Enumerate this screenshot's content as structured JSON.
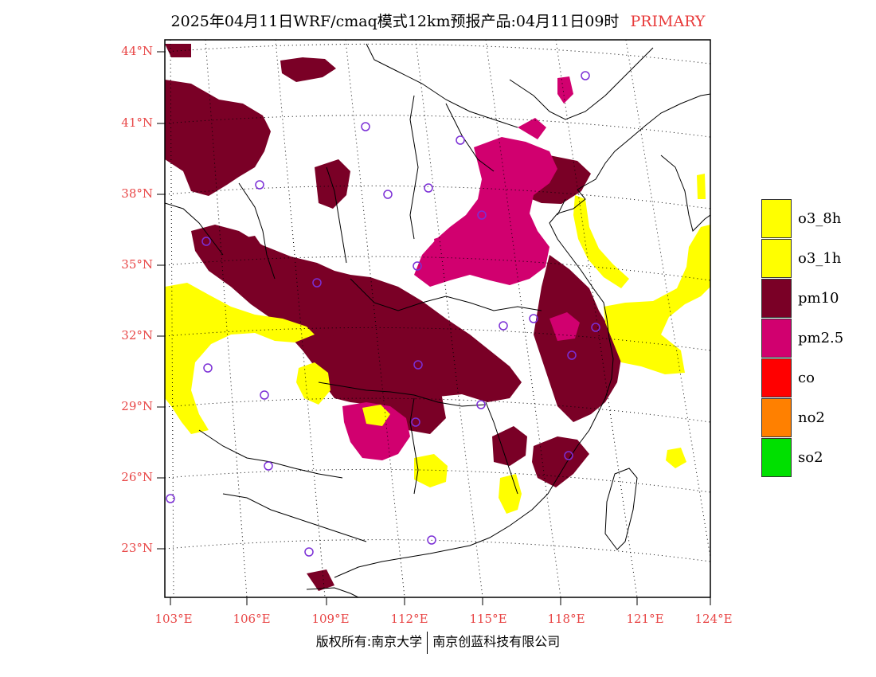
{
  "header": {
    "title": "2025年04月11日WRF/cmaq模式12km预报产品:04月11日09时",
    "tag": "PRIMARY"
  },
  "axes": {
    "lat_labels": [
      "44°N",
      "41°N",
      "38°N",
      "35°N",
      "32°N",
      "29°N",
      "26°N",
      "23°N"
    ],
    "lon_labels": [
      "103°E",
      "106°E",
      "109°E",
      "112°E",
      "115°E",
      "118°E",
      "121°E",
      "124°E"
    ]
  },
  "legend": {
    "items": [
      {
        "label": "o3_8h",
        "color": "#ffff00"
      },
      {
        "label": "o3_1h",
        "color": "#ffff00"
      },
      {
        "label": "pm10",
        "color": "#7a0026"
      },
      {
        "label": "pm2.5",
        "color": "#d1006f"
      },
      {
        "label": "co",
        "color": "#ff0000"
      },
      {
        "label": "no2",
        "color": "#ff8000"
      },
      {
        "label": "so2",
        "color": "#00e000"
      }
    ]
  },
  "footer": {
    "left": "版权所有:南京大学",
    "right": "南京创蓝科技有限公司"
  },
  "colors": {
    "pm10": "#7a0026",
    "pm25": "#d1006f",
    "o3": "#ffff00",
    "station": "#7b2fd6",
    "axis_label": "#e84646"
  }
}
